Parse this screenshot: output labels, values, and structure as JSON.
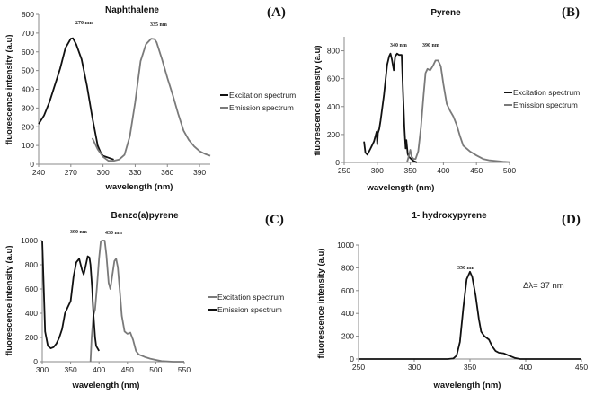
{
  "colors": {
    "black_series": "#111111",
    "gray_series": "#7a7a7a",
    "axis": "#888888"
  },
  "chart_data": [
    {
      "type": "line",
      "panel_label": "(A)",
      "title": "Naphthalene",
      "xlabel": "wavelength (nm)",
      "ylabel": "fluorescence intensity (a.u)",
      "xlim": [
        240,
        400
      ],
      "ylim": [
        0,
        800
      ],
      "xticks": [
        240,
        270,
        300,
        330,
        360,
        390
      ],
      "yticks": [
        0,
        100,
        200,
        300,
        400,
        500,
        600,
        700,
        800
      ],
      "legend_position": "right",
      "annotations": [
        "270 nm",
        "335 nm"
      ],
      "series": [
        {
          "name": "Excitation spectrum",
          "color": "black",
          "x": [
            240,
            245,
            250,
            255,
            260,
            265,
            268,
            270,
            272,
            275,
            280,
            285,
            290,
            295,
            298,
            300,
            305,
            310
          ],
          "y": [
            215,
            260,
            330,
            420,
            510,
            620,
            650,
            670,
            672,
            640,
            560,
            420,
            250,
            100,
            60,
            45,
            35,
            25
          ]
        },
        {
          "name": "Emission spectrum",
          "color": "gray",
          "x": [
            290,
            295,
            300,
            305,
            310,
            315,
            320,
            325,
            330,
            335,
            340,
            345,
            348,
            350,
            355,
            360,
            365,
            370,
            375,
            380,
            385,
            390,
            395,
            400
          ],
          "y": [
            140,
            80,
            40,
            18,
            18,
            25,
            50,
            150,
            330,
            550,
            640,
            670,
            668,
            650,
            560,
            460,
            370,
            270,
            180,
            130,
            95,
            70,
            55,
            45
          ]
        }
      ]
    },
    {
      "type": "line",
      "panel_label": "(B)",
      "title": "Pyrene",
      "xlabel": "wavelength (nm)",
      "ylabel": "fluorescence intensity (a.u)",
      "xlim": [
        250,
        500
      ],
      "ylim": [
        0,
        900
      ],
      "xticks": [
        250,
        300,
        350,
        400,
        450,
        500
      ],
      "yticks": [
        0,
        200,
        400,
        600,
        800
      ],
      "legend_position": "right",
      "annotations": [
        "340 nm",
        "390 nm"
      ],
      "series": [
        {
          "name": "Excitation spectrum",
          "color": "black",
          "x": [
            280,
            282,
            285,
            290,
            295,
            299,
            300,
            301,
            303,
            305,
            310,
            315,
            318,
            320,
            322,
            325,
            327,
            330,
            333,
            337,
            339,
            341,
            342,
            343,
            344,
            346,
            348,
            350,
            355,
            360
          ],
          "y": [
            150,
            70,
            55,
            100,
            150,
            220,
            130,
            210,
            240,
            300,
            480,
            700,
            760,
            780,
            740,
            660,
            760,
            780,
            770,
            770,
            500,
            250,
            170,
            100,
            160,
            60,
            40,
            30,
            10,
            0
          ]
        },
        {
          "name": "Emission spectrum",
          "color": "gray",
          "x": [
            345,
            348,
            350,
            352,
            355,
            358,
            362,
            366,
            370,
            373,
            376,
            380,
            384,
            388,
            392,
            396,
            400,
            405,
            410,
            415,
            420,
            425,
            430,
            440,
            450,
            460,
            470,
            480,
            490,
            500
          ],
          "y": [
            0,
            50,
            90,
            40,
            25,
            25,
            80,
            250,
            480,
            640,
            670,
            660,
            690,
            730,
            730,
            690,
            560,
            420,
            370,
            330,
            270,
            190,
            120,
            80,
            50,
            25,
            15,
            10,
            5,
            2
          ]
        }
      ]
    },
    {
      "type": "line",
      "panel_label": "(C)",
      "title": "Benzo(a)pyrene",
      "xlabel": "wavelength (nm)",
      "ylabel": "fluorescence intensity (a.u)",
      "xlim": [
        300,
        550
      ],
      "ylim": [
        0,
        1000
      ],
      "xticks": [
        300,
        350,
        400,
        450,
        500,
        550
      ],
      "yticks": [
        0,
        200,
        400,
        600,
        800,
        1000
      ],
      "legend_position": "right",
      "annotations": [
        "390 nm",
        "430 nm"
      ],
      "series": [
        {
          "name": "Excitation spectrum",
          "color": "gray",
          "x": [
            385,
            387,
            390,
            393,
            396,
            400,
            403,
            405,
            410,
            413,
            417,
            420,
            423,
            427,
            430,
            433,
            437,
            440,
            445,
            450,
            455,
            460,
            465,
            470,
            480,
            490,
            500,
            510,
            530,
            550
          ],
          "y": [
            0,
            200,
            380,
            430,
            600,
            850,
            990,
            1000,
            1000,
            880,
            650,
            600,
            700,
            830,
            850,
            780,
            560,
            380,
            250,
            230,
            240,
            180,
            90,
            60,
            40,
            25,
            15,
            5,
            0,
            0
          ]
        },
        {
          "name": "Emission spectrum",
          "color": "black",
          "x": [
            300,
            302,
            305,
            310,
            315,
            320,
            325,
            330,
            335,
            340,
            345,
            350,
            355,
            360,
            365,
            370,
            373,
            375,
            380,
            383,
            385,
            388,
            390,
            393,
            395,
            400
          ],
          "y": [
            1000,
            700,
            250,
            130,
            110,
            120,
            150,
            200,
            270,
            400,
            450,
            500,
            700,
            820,
            850,
            760,
            720,
            760,
            870,
            860,
            800,
            600,
            400,
            200,
            130,
            90
          ]
        }
      ]
    },
    {
      "type": "line",
      "panel_label": "(D)",
      "title": "1- hydroxypyrene",
      "xlabel": "wavelength (nm)",
      "ylabel": "fluorescence intensity (a.u)",
      "xlim": [
        250,
        450
      ],
      "ylim": [
        0,
        1000
      ],
      "xticks": [
        250,
        300,
        350,
        400,
        450
      ],
      "yticks": [
        0,
        200,
        400,
        600,
        800,
        1000
      ],
      "annotations": [
        "350 nm",
        "Δλ= 37 nm"
      ],
      "series": [
        {
          "name": "1-hydroxypyrene",
          "color": "black",
          "x": [
            250,
            330,
            335,
            338,
            341,
            344,
            347,
            350,
            352,
            355,
            358,
            360,
            363,
            367,
            370,
            373,
            376,
            380,
            385,
            390,
            395,
            450
          ],
          "y": [
            0,
            0,
            5,
            30,
            150,
            450,
            700,
            765,
            720,
            560,
            350,
            240,
            200,
            170,
            110,
            70,
            55,
            50,
            30,
            10,
            0,
            0
          ]
        }
      ]
    }
  ]
}
